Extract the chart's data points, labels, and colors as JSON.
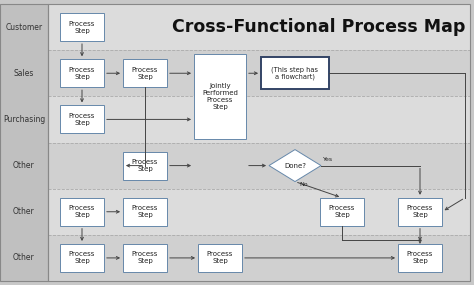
{
  "title": "Cross-Functional Process Map",
  "background_color": "#c8c8c8",
  "lane_labels": [
    "Customer",
    "Sales",
    "Purchasing",
    "Other",
    "Other",
    "Other"
  ],
  "lane_alt_colors": [
    "#dcdcdc",
    "#d0d0d0"
  ],
  "label_col_color": "#c0c0c0",
  "box_fill": "#ffffff",
  "box_edge": "#6688aa",
  "box_edge_bold": "#334466",
  "arrow_color": "#444444",
  "text_color": "#222222",
  "lane_label_color": "#333333",
  "sep_line_color": "#aaaaaa",
  "outer_border_color": "#888888",
  "note_box_text": "(This step has\na flowchart)",
  "jointly_text": "Jointly\nPerformed\nProcess\nStep",
  "process_step_text": "Process\nStep",
  "done_text": "Done?",
  "yes_text": "Yes",
  "no_text": "No"
}
